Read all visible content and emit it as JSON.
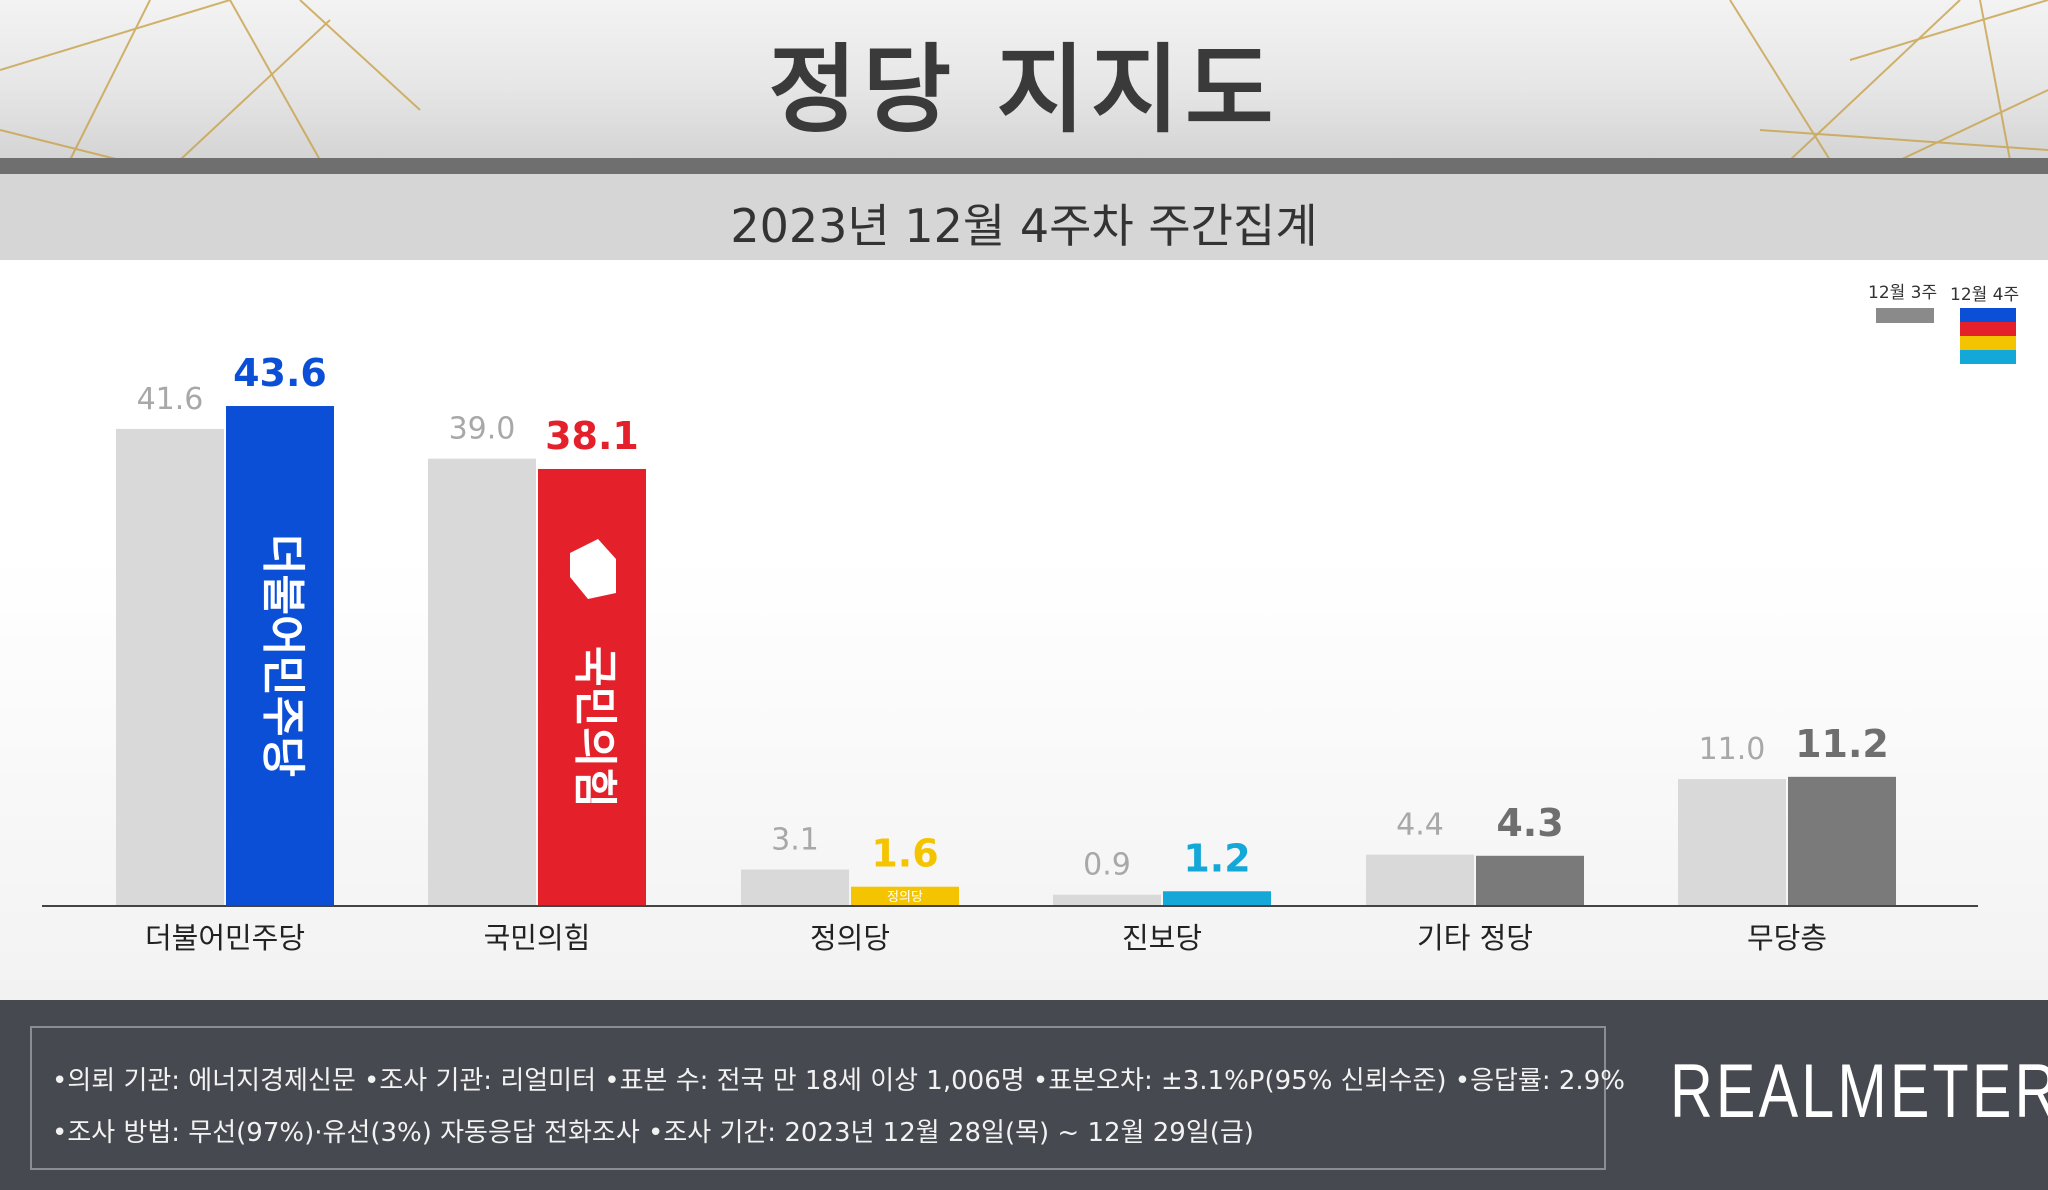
{
  "header": {
    "title": "정당 지지도",
    "subtitle": "2023년 12월 4주차 주간집계"
  },
  "legend": {
    "previous": "12월 3주",
    "current": "12월 4주",
    "previous_color": "#8a8a8a",
    "current_colors": [
      "#0a4fd6",
      "#e4212b",
      "#f5c400",
      "#14a8d8"
    ]
  },
  "chart_data": {
    "type": "bar",
    "categories": [
      "더불어민주당",
      "국민의힘",
      "정의당",
      "진보당",
      "기타 정당",
      "무당층"
    ],
    "series": [
      {
        "name": "12월 3주",
        "values": [
          41.6,
          39.0,
          3.1,
          0.9,
          4.4,
          11.0
        ],
        "color": "#d9d9d9"
      },
      {
        "name": "12월 4주",
        "values": [
          43.6,
          38.1,
          1.6,
          1.2,
          4.3,
          11.2
        ],
        "colors": [
          "#0a4fd6",
          "#e4212b",
          "#f5c400",
          "#14a8d8",
          "#7a7a7a",
          "#7a7a7a"
        ]
      }
    ],
    "value_labels": {
      "previous": [
        "41.6",
        "39.0",
        "3.1",
        "0.9",
        "4.4",
        "11.0"
      ],
      "current": [
        "43.6",
        "38.1",
        "1.6",
        "1.2",
        "4.3",
        "11.2"
      ]
    },
    "bar_logos": [
      "더불어민주당",
      "국민의힘",
      "정의당",
      "",
      "",
      ""
    ],
    "ylim": [
      0,
      45
    ],
    "grid": false,
    "legend_position": "top-right"
  },
  "footer": {
    "note_1": "•의뢰 기관: 에너지경제신문  •조사 기관: 리얼미터 •표본 수: 전국 만 18세 이상 1,006명 •표본오차: ±3.1%P(95% 신뢰수준) •응답률: 2.9%",
    "note_2": "•조사 방법: 무선(97%)·유선(3%) 자동응답 전화조사 •조사 기간: 2023년 12월 28일(목) ~ 12월 29일(금)",
    "brand": "REALMETER"
  }
}
